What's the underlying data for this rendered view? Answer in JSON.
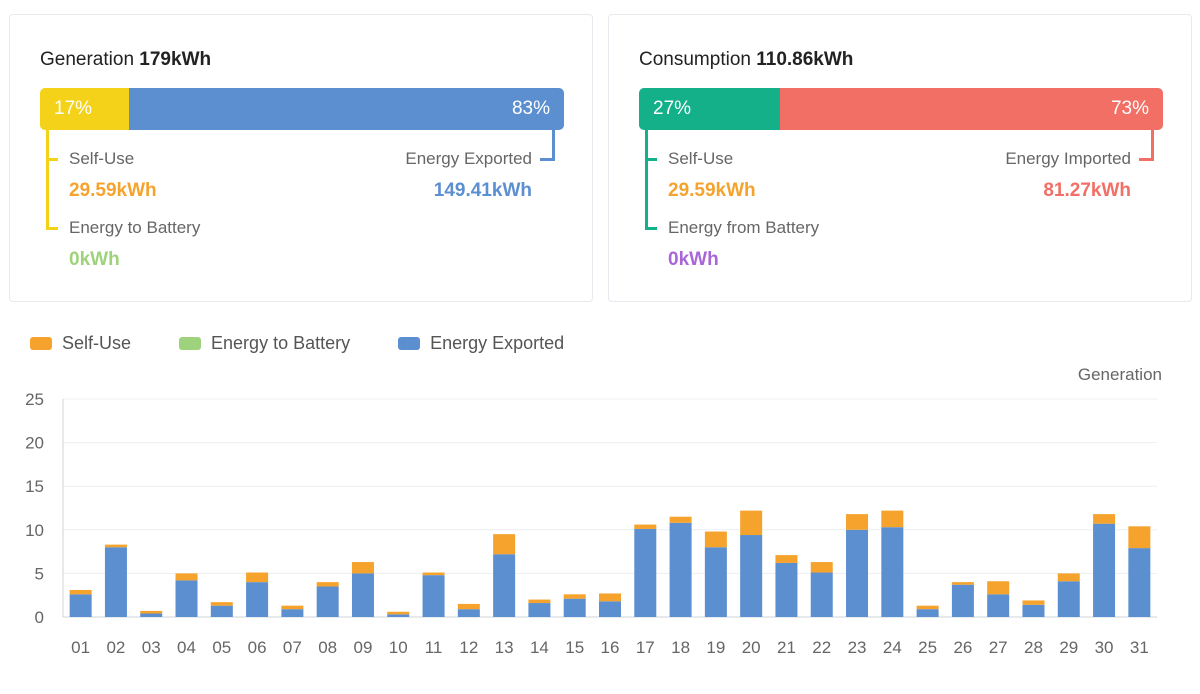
{
  "generation_card": {
    "title_label": "Generation",
    "total": "179kWh",
    "left_percent": "17%",
    "right_percent": "83%",
    "self_use_label": "Self-Use",
    "self_use_value": "29.59kWh",
    "exported_label": "Energy Exported",
    "exported_value": "149.41kWh",
    "battery_label": "Energy to Battery",
    "battery_value": "0kWh",
    "left_fraction": 0.17,
    "colors": {
      "left": "#f5d21a",
      "right": "#5b8fd0",
      "self_use_value": "#f5a32d",
      "exported_value": "#5b8fd0",
      "battery_value": "#9ed27c"
    }
  },
  "consumption_card": {
    "title_label": "Consumption",
    "total": "110.86kWh",
    "left_percent": "27%",
    "right_percent": "73%",
    "self_use_label": "Self-Use",
    "self_use_value": "29.59kWh",
    "imported_label": "Energy Imported",
    "imported_value": "81.27kWh",
    "battery_label": "Energy from Battery",
    "battery_value": "0kWh",
    "left_fraction": 0.27,
    "colors": {
      "left": "#13b08a",
      "right": "#f16f65",
      "self_use_value": "#f5a32d",
      "imported_value": "#f16f65",
      "battery_value": "#a866d8"
    }
  },
  "chart_data": {
    "type": "bar",
    "stacked": true,
    "title": "Generation",
    "ylim": [
      0,
      25
    ],
    "yticks": [
      0,
      5,
      10,
      15,
      20,
      25
    ],
    "grid": true,
    "legend_position": "top-left",
    "categories": [
      "01",
      "02",
      "03",
      "04",
      "05",
      "06",
      "07",
      "08",
      "09",
      "10",
      "11",
      "12",
      "13",
      "14",
      "15",
      "16",
      "17",
      "18",
      "19",
      "20",
      "21",
      "22",
      "23",
      "24",
      "25",
      "26",
      "27",
      "28",
      "29",
      "30",
      "31"
    ],
    "series": [
      {
        "name": "Energy Exported",
        "color": "#5b8fd0",
        "values": [
          2.6,
          8.0,
          0.4,
          4.2,
          1.3,
          4.0,
          0.9,
          3.5,
          5.0,
          0.3,
          4.8,
          0.9,
          7.2,
          1.6,
          2.1,
          1.8,
          10.1,
          10.8,
          8.0,
          9.4,
          6.2,
          5.1,
          10.0,
          10.3,
          0.9,
          3.7,
          2.6,
          1.4,
          4.1,
          10.7,
          7.9
        ]
      },
      {
        "name": "Energy to Battery",
        "color": "#9ed27c",
        "values": [
          0,
          0,
          0,
          0,
          0,
          0,
          0,
          0,
          0,
          0,
          0,
          0,
          0,
          0,
          0,
          0,
          0,
          0,
          0,
          0,
          0,
          0,
          0,
          0,
          0,
          0,
          0,
          0,
          0,
          0,
          0
        ]
      },
      {
        "name": "Self-Use",
        "color": "#f5a32d",
        "values": [
          0.5,
          0.3,
          0.3,
          0.8,
          0.4,
          1.1,
          0.4,
          0.5,
          1.3,
          0.3,
          0.3,
          0.6,
          2.3,
          0.4,
          0.5,
          0.9,
          0.5,
          0.7,
          1.8,
          2.8,
          0.9,
          1.2,
          1.8,
          1.9,
          0.4,
          0.3,
          1.5,
          0.5,
          0.9,
          1.1,
          2.5
        ]
      }
    ],
    "legend": [
      {
        "label": "Self-Use",
        "color": "#f5a32d"
      },
      {
        "label": "Energy to Battery",
        "color": "#9ed27c"
      },
      {
        "label": "Energy Exported",
        "color": "#5b8fd0"
      }
    ]
  }
}
